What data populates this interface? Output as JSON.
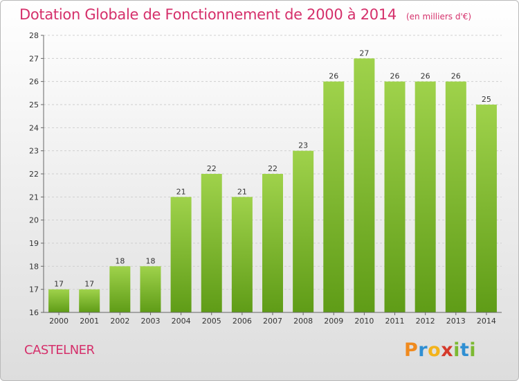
{
  "header": {
    "title": "Dotation Globale de Fonctionnement de 2000 à 2014",
    "unit": "(en milliers d'€)"
  },
  "footer": {
    "commune": "CASTELNER",
    "logo_letters": [
      "P",
      "r",
      "o",
      "x",
      "i",
      "t",
      "i"
    ],
    "logo_colors": [
      "#f08a1e",
      "#2f8fd3",
      "#f3b31b",
      "#d53a2c",
      "#7cb932",
      "#2f8fd3",
      "#7cb932"
    ]
  },
  "colors": {
    "title": "#d5306b",
    "bar_top": "#9fd24b",
    "bar_bottom": "#5f9c17",
    "grid": "#cfcfcf"
  },
  "chart_data": {
    "type": "bar",
    "categories": [
      "2000",
      "2001",
      "2002",
      "2003",
      "2004",
      "2005",
      "2006",
      "2007",
      "2008",
      "2009",
      "2010",
      "2011",
      "2012",
      "2013",
      "2014"
    ],
    "values": [
      17,
      17,
      18,
      18,
      21,
      22,
      21,
      22,
      23,
      26,
      27,
      26,
      26,
      26,
      25
    ],
    "data_labels": [
      "17",
      "17",
      "18",
      "18",
      "21",
      "22",
      "21",
      "22",
      "23",
      "26",
      "27",
      "26",
      "26",
      "26",
      "25"
    ],
    "ylim": [
      16,
      28
    ],
    "yticks": [
      "16",
      "17",
      "18",
      "19",
      "20",
      "21",
      "22",
      "23",
      "24",
      "25",
      "26",
      "27",
      "28"
    ],
    "grid": true,
    "legend": "none"
  }
}
